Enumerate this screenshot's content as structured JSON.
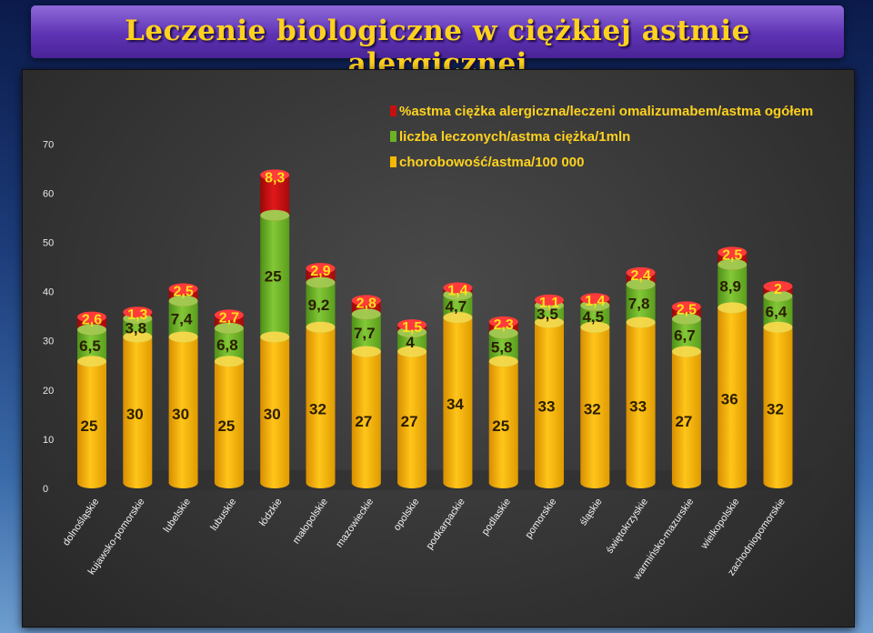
{
  "slide_title": "Leczenie biologiczne w ciężkiej astmie alergicznej",
  "colors": {
    "yellow": "#f5b800",
    "green": "#6ab325",
    "red": "#c80f10",
    "label_top": "#ffe11a"
  },
  "chart_data": {
    "type": "bar",
    "stacked": true,
    "categories": [
      "dolnośląskie",
      "kujawsko-pomorskie",
      "lubelskie",
      "lubuskie",
      "łódzkie",
      "małopolskie",
      "mazowieckie",
      "opolskie",
      "podkarpackie",
      "podlaskie",
      "pomorskie",
      "śląskie",
      "świętokrzyskie",
      "warmińsko-mazurskie",
      "wielkopolskie",
      "zachodniopomorskie"
    ],
    "series": [
      {
        "name": "chorobowość/astma/100 000",
        "color": "#f5b800",
        "values": [
          25,
          30,
          30,
          25,
          30,
          32,
          27,
          27,
          34,
          25,
          33,
          32,
          33,
          27,
          36,
          32
        ],
        "labels": [
          "25",
          "30",
          "30",
          "25",
          "30",
          "32",
          "27",
          "27",
          "34",
          "25",
          "33",
          "32",
          "33",
          "27",
          "36",
          "32"
        ]
      },
      {
        "name": "liczba leczonych/astma ciężka/1mln",
        "color": "#6ab325",
        "values": [
          6.5,
          3.8,
          7.4,
          6.8,
          25,
          9.2,
          7.7,
          4,
          4.7,
          5.8,
          3.5,
          4.5,
          7.8,
          6.7,
          8.9,
          6.4
        ],
        "labels": [
          "6,5",
          "3,8",
          "7,4",
          "6,8",
          "25",
          "9,2",
          "7,7",
          "4",
          "4,7",
          "5,8",
          "3,5",
          "4,5",
          "7,8",
          "6,7",
          "8,9",
          "6,4"
        ]
      },
      {
        "name": "%astma ciężka alergiczna/leczeni omalizumabem/astma ogółem",
        "color": "#c80f10",
        "values": [
          2.6,
          1.3,
          2.5,
          2.7,
          8.3,
          2.9,
          2.8,
          1.5,
          1.4,
          2.3,
          1.1,
          1.4,
          2.4,
          2.5,
          2.5,
          2
        ],
        "labels": [
          "2,6",
          "1,3",
          "2,5",
          "2,7",
          "8,3",
          "2,9",
          "2,8",
          "1,5",
          "1,4",
          "2,3",
          "1,1",
          "1,4",
          "2,4",
          "2,5",
          "2,5",
          "2"
        ]
      }
    ],
    "legend": [
      "%astma ciężka alergiczna/leczeni omalizumabem/astma ogółem",
      "liczba leczonych/astma ciężka/1mln",
      "chorobowość/astma/100 000"
    ],
    "legend_position": "top-right",
    "yticks": [
      "0",
      "10",
      "20",
      "30",
      "40",
      "50",
      "60",
      "70"
    ],
    "ylim": [
      0,
      70
    ],
    "grid": false
  }
}
